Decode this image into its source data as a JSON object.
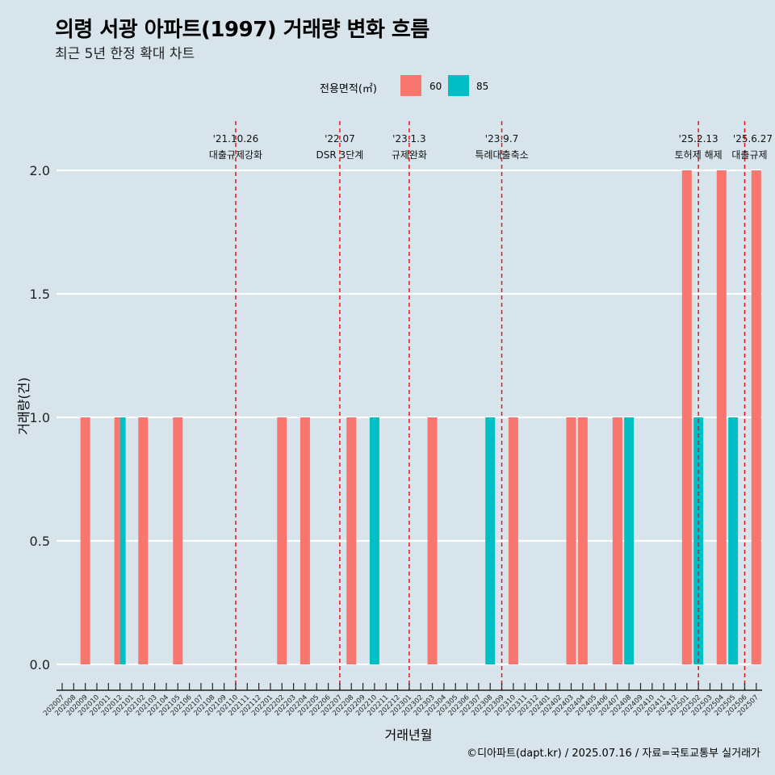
{
  "chart_data": {
    "type": "bar",
    "title": "의령 서광 아파트(1997) 거래량 변화 흐름",
    "subtitle": "최근 5년 한정 확대 차트",
    "xlabel": "거래년월",
    "ylabel": "거래량(건)",
    "ylim": [
      0,
      2
    ],
    "yticks": [
      "0.0",
      "0.5",
      "1.0",
      "1.5",
      "2.0"
    ],
    "legend_title": "전용면적(㎡)",
    "legend_position": "top",
    "grid": true,
    "series_colors": {
      "60": "#f8766d",
      "85": "#00bfc4"
    },
    "categories": [
      "202007",
      "202008",
      "202009",
      "202010",
      "202011",
      "202012",
      "202101",
      "202102",
      "202103",
      "202104",
      "202105",
      "202106",
      "202107",
      "202108",
      "202109",
      "202110",
      "202111",
      "202112",
      "202201",
      "202202",
      "202203",
      "202204",
      "202205",
      "202206",
      "202207",
      "202208",
      "202209",
      "202210",
      "202211",
      "202212",
      "202301",
      "202302",
      "202303",
      "202304",
      "202305",
      "202306",
      "202307",
      "202308",
      "202309",
      "202310",
      "202311",
      "202312",
      "202401",
      "202402",
      "202403",
      "202404",
      "202405",
      "202406",
      "202407",
      "202408",
      "202409",
      "202410",
      "202411",
      "202412",
      "202501",
      "202502",
      "202503",
      "202504",
      "202505",
      "202506",
      "202507"
    ],
    "bars": [
      {
        "x": "202009",
        "series": "60",
        "value": 1
      },
      {
        "x": "202012",
        "series": "60",
        "value": 1
      },
      {
        "x": "202012",
        "series": "85",
        "value": 1
      },
      {
        "x": "202102",
        "series": "60",
        "value": 1
      },
      {
        "x": "202105",
        "series": "60",
        "value": 1
      },
      {
        "x": "202202",
        "series": "60",
        "value": 1
      },
      {
        "x": "202204",
        "series": "60",
        "value": 1
      },
      {
        "x": "202208",
        "series": "60",
        "value": 1
      },
      {
        "x": "202210",
        "series": "85",
        "value": 1
      },
      {
        "x": "202303",
        "series": "60",
        "value": 1
      },
      {
        "x": "202308",
        "series": "85",
        "value": 1
      },
      {
        "x": "202310",
        "series": "60",
        "value": 1
      },
      {
        "x": "202403",
        "series": "60",
        "value": 1
      },
      {
        "x": "202404",
        "series": "60",
        "value": 1
      },
      {
        "x": "202407",
        "series": "60",
        "value": 1
      },
      {
        "x": "202408",
        "series": "85",
        "value": 1
      },
      {
        "x": "202501",
        "series": "60",
        "value": 2
      },
      {
        "x": "202502",
        "series": "85",
        "value": 1
      },
      {
        "x": "202504",
        "series": "60",
        "value": 2
      },
      {
        "x": "202505",
        "series": "85",
        "value": 1
      },
      {
        "x": "202507",
        "series": "60",
        "value": 2
      }
    ],
    "annotations": [
      {
        "x": "202110",
        "date": "'21.10.26",
        "label": "대출규제강화"
      },
      {
        "x": "202207",
        "date": "'22.07",
        "label": "DSR 3단계"
      },
      {
        "x": "202301",
        "date": "'23.1.3",
        "label": "규제완화"
      },
      {
        "x": "202309",
        "date": "'23.9.7",
        "label": "특례대출축소"
      },
      {
        "x": "202502",
        "date": "'25.2.13",
        "label": "토허제 해제"
      },
      {
        "x": "202506",
        "date": "'25.6.27",
        "label": "대출규제"
      }
    ]
  },
  "legend": {
    "items": [
      {
        "label": "60"
      },
      {
        "label": "85"
      }
    ]
  },
  "caption": "©디아파트(dapt.kr) / 2025.07.16 / 자료=국토교통부 실거래가"
}
